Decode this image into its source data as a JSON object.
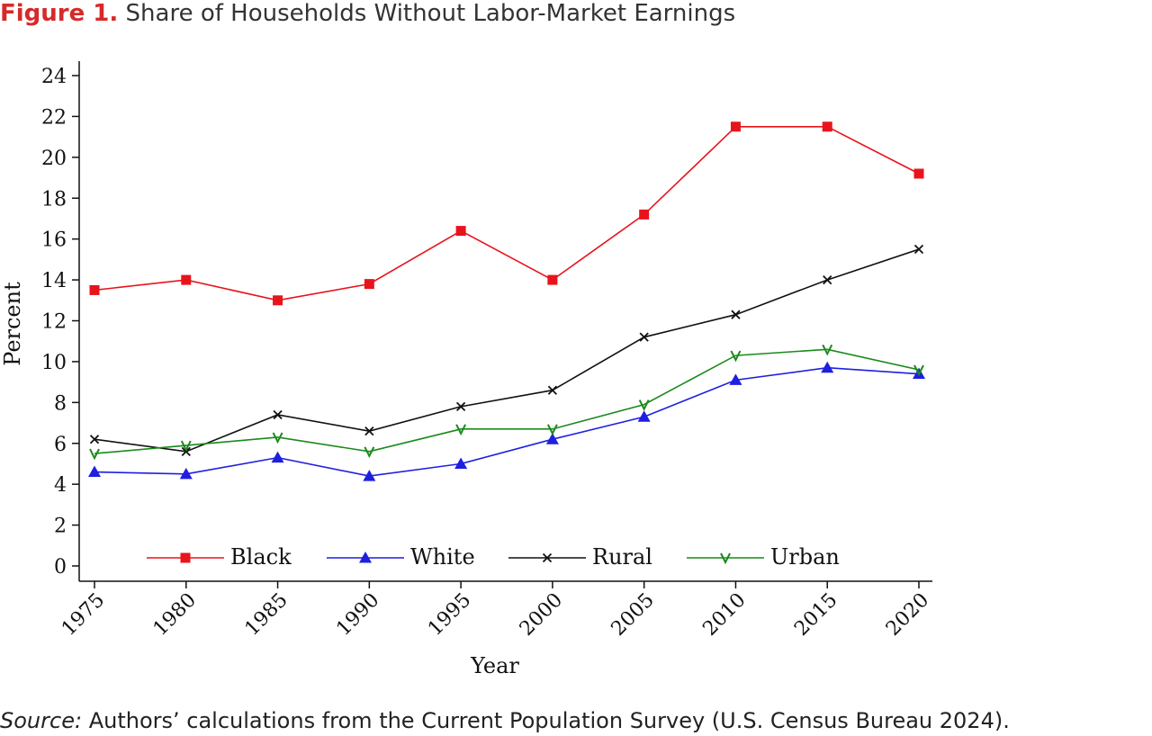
{
  "figure": {
    "label": "Figure 1.",
    "title": "Share of Households Without Labor-Market Earnings",
    "source_label": "Source:",
    "source_text": "Authors’ calculations from the Current Population Survey (U.S. Census Bureau 2024)."
  },
  "chart_data": {
    "type": "line",
    "title": "Share of Households Without Labor-Market Earnings",
    "xlabel": "Year",
    "ylabel": "Percent",
    "x": [
      1975,
      1980,
      1985,
      1990,
      1995,
      2000,
      2005,
      2010,
      2015,
      2020
    ],
    "xlim": [
      1975,
      2020
    ],
    "ylim": [
      0,
      24
    ],
    "yticks": [
      0,
      2,
      4,
      6,
      8,
      10,
      12,
      14,
      16,
      18,
      20,
      22,
      24
    ],
    "grid": false,
    "legend_position": "bottom-inside",
    "series": [
      {
        "name": "Black",
        "color": "#e8141c",
        "marker": "square",
        "values": [
          13.5,
          14.0,
          13.0,
          13.8,
          16.4,
          14.0,
          17.2,
          21.5,
          21.5,
          19.2
        ]
      },
      {
        "name": "White",
        "color": "#1f1fe0",
        "marker": "triangle",
        "values": [
          4.6,
          4.5,
          5.3,
          4.4,
          5.0,
          6.2,
          7.3,
          9.1,
          9.7,
          9.4
        ]
      },
      {
        "name": "Rural",
        "color": "#111111",
        "marker": "x",
        "values": [
          6.2,
          5.6,
          7.4,
          6.6,
          7.8,
          8.6,
          11.2,
          12.3,
          14.0,
          15.5
        ]
      },
      {
        "name": "Urban",
        "color": "#1a8a1a",
        "marker": "v",
        "values": [
          5.5,
          5.9,
          6.3,
          5.6,
          6.7,
          6.7,
          7.9,
          10.3,
          10.6,
          9.6
        ]
      }
    ]
  }
}
